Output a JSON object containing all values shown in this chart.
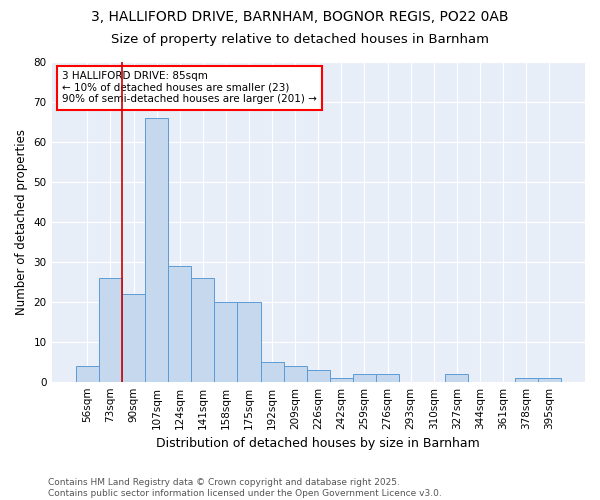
{
  "title1": "3, HALLIFORD DRIVE, BARNHAM, BOGNOR REGIS, PO22 0AB",
  "title2": "Size of property relative to detached houses in Barnham",
  "xlabel": "Distribution of detached houses by size in Barnham",
  "ylabel": "Number of detached properties",
  "categories": [
    "56sqm",
    "73sqm",
    "90sqm",
    "107sqm",
    "124sqm",
    "141sqm",
    "158sqm",
    "175sqm",
    "192sqm",
    "209sqm",
    "226sqm",
    "242sqm",
    "259sqm",
    "276sqm",
    "293sqm",
    "310sqm",
    "327sqm",
    "344sqm",
    "361sqm",
    "378sqm",
    "395sqm"
  ],
  "values": [
    4,
    26,
    22,
    66,
    29,
    26,
    20,
    20,
    5,
    4,
    3,
    1,
    2,
    2,
    0,
    0,
    2,
    0,
    0,
    1,
    1
  ],
  "bar_color": "#c5d8ee",
  "bar_edge_color": "#5b9bd5",
  "vline_color": "#cc0000",
  "annotation_text": "3 HALLIFORD DRIVE: 85sqm\n← 10% of detached houses are smaller (23)\n90% of semi-detached houses are larger (201) →",
  "ylim": [
    0,
    80
  ],
  "yticks": [
    0,
    10,
    20,
    30,
    40,
    50,
    60,
    70,
    80
  ],
  "background_color": "#e8eef8",
  "footer": "Contains HM Land Registry data © Crown copyright and database right 2025.\nContains public sector information licensed under the Open Government Licence v3.0.",
  "title_fontsize": 10,
  "subtitle_fontsize": 9.5,
  "xlabel_fontsize": 9,
  "ylabel_fontsize": 8.5,
  "tick_fontsize": 7.5,
  "footer_fontsize": 6.5
}
